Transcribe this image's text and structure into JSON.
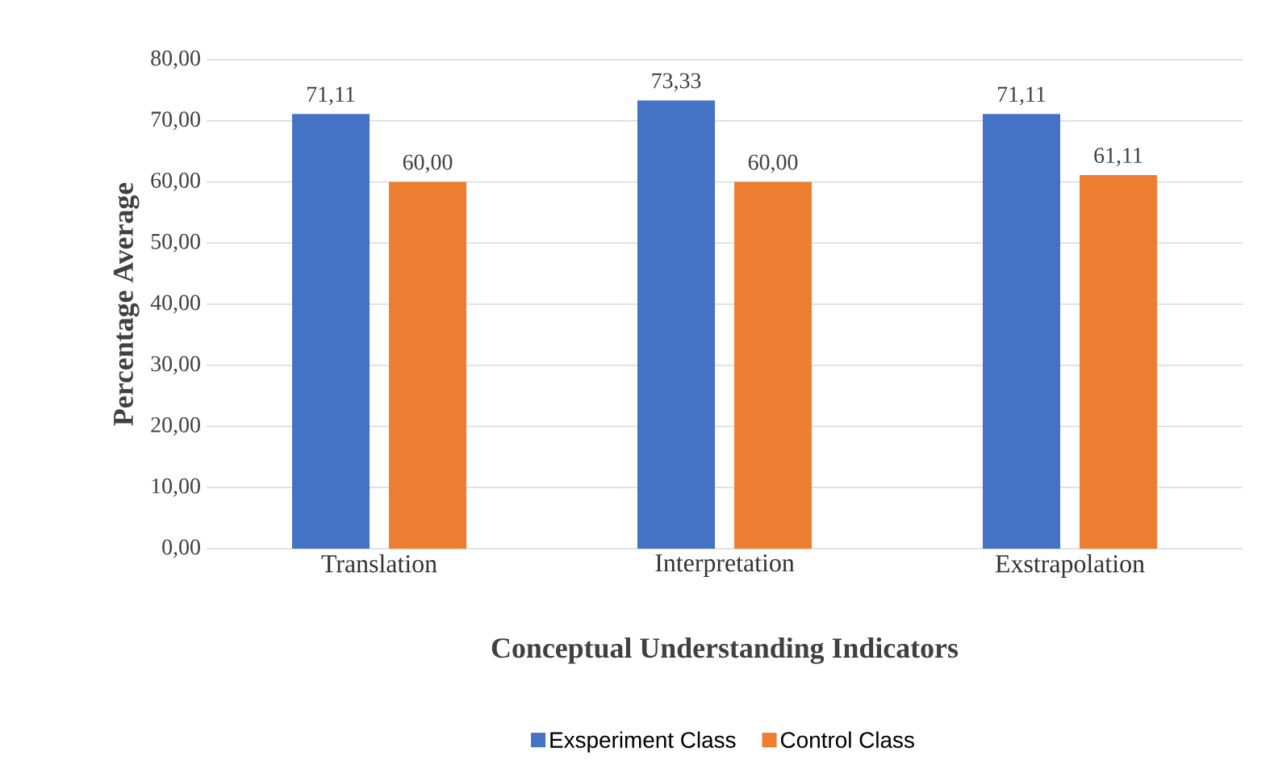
{
  "chart_data": {
    "type": "bar",
    "xlabel": "Conceptual Understanding Indicators",
    "ylabel": "Percentage Average",
    "categories": [
      "Translation",
      "Interpretation",
      "Exstrapolation"
    ],
    "series": [
      {
        "name": "Exsperiment Class",
        "color": "#4472c4",
        "values": [
          71.11,
          73.33,
          71.11
        ],
        "value_labels": [
          "71,11",
          "73,33",
          "71,11"
        ]
      },
      {
        "name": "Control Class",
        "color": "#ed7d31",
        "values": [
          60.0,
          60.0,
          61.11
        ],
        "value_labels": [
          "60,00",
          "60,00",
          "61,11"
        ]
      }
    ],
    "ylim": [
      0,
      80
    ],
    "yticks": [
      {
        "value": 0,
        "label": "0,00"
      },
      {
        "value": 10,
        "label": "10,00"
      },
      {
        "value": 20,
        "label": "20,00"
      },
      {
        "value": 30,
        "label": "30,00"
      },
      {
        "value": 40,
        "label": "40,00"
      },
      {
        "value": 50,
        "label": "50,00"
      },
      {
        "value": 60,
        "label": "60,00"
      },
      {
        "value": 70,
        "label": "70,00"
      },
      {
        "value": 80,
        "label": "80,00"
      }
    ],
    "grid": "y",
    "legend": "bottom"
  }
}
